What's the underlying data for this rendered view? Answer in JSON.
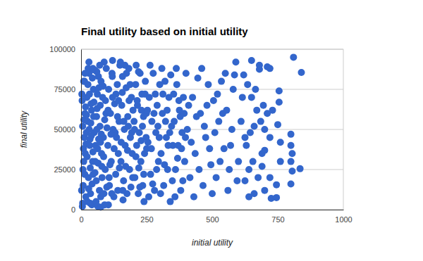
{
  "chart_data": {
    "type": "scatter",
    "title": "Final utility based on initial utility",
    "x_label": "initial utility",
    "y_label": "final utility",
    "color": "#3366cc",
    "marker": "circle",
    "grid": true,
    "xlim": [
      0,
      1000
    ],
    "ylim": [
      0,
      100000
    ],
    "xticks": [
      0,
      250,
      500,
      750,
      1000
    ],
    "yticks": [
      0,
      25000,
      50000,
      75000,
      100000
    ],
    "x": [
      5,
      8,
      10,
      12,
      15,
      3,
      6,
      9,
      14,
      18,
      4,
      7,
      11,
      16,
      20,
      2,
      13,
      17,
      19,
      6,
      22,
      25,
      28,
      30,
      33,
      36,
      40,
      44,
      47,
      50,
      24,
      27,
      31,
      35,
      38,
      42,
      45,
      48,
      26,
      34,
      23,
      29,
      32,
      37,
      41,
      43,
      46,
      49,
      39,
      21,
      52,
      55,
      58,
      61,
      65,
      68,
      72,
      75,
      78,
      82,
      85,
      88,
      92,
      95,
      98,
      54,
      60,
      66,
      73,
      80,
      57,
      63,
      70,
      77,
      84,
      90,
      96,
      62,
      74,
      86,
      53,
      59,
      67,
      71,
      79,
      87,
      93,
      99,
      64,
      76,
      102,
      105,
      108,
      112,
      115,
      118,
      122,
      125,
      128,
      132,
      135,
      138,
      142,
      145,
      148,
      104,
      110,
      120,
      130,
      140,
      103,
      107,
      114,
      119,
      126,
      133,
      139,
      146,
      117,
      143,
      152,
      155,
      158,
      162,
      165,
      168,
      172,
      175,
      178,
      182,
      185,
      188,
      192,
      195,
      198,
      160,
      170,
      180,
      190,
      157,
      153,
      163,
      173,
      183,
      193,
      167,
      177,
      187,
      197,
      159,
      202,
      205,
      208,
      212,
      215,
      218,
      222,
      225,
      228,
      232,
      235,
      238,
      242,
      245,
      248,
      210,
      220,
      230,
      240,
      250,
      204,
      214,
      224,
      234,
      244,
      209,
      219,
      229,
      239,
      249,
      255,
      260,
      265,
      270,
      275,
      280,
      285,
      290,
      295,
      300,
      258,
      268,
      278,
      288,
      298,
      263,
      273,
      283,
      293,
      253,
      305,
      310,
      315,
      320,
      325,
      330,
      335,
      340,
      345,
      350,
      308,
      318,
      328,
      338,
      348,
      312,
      322,
      332,
      342,
      303,
      355,
      360,
      365,
      370,
      375,
      380,
      385,
      390,
      395,
      400,
      358,
      368,
      378,
      388,
      398,
      363,
      373,
      383,
      393,
      353,
      405,
      415,
      425,
      435,
      445,
      455,
      465,
      475,
      485,
      495,
      410,
      420,
      430,
      440,
      450,
      460,
      470,
      480,
      490,
      500,
      510,
      520,
      530,
      540,
      550,
      560,
      570,
      580,
      590,
      600,
      515,
      525,
      535,
      545,
      555,
      565,
      575,
      585,
      595,
      505,
      610,
      620,
      630,
      640,
      650,
      660,
      670,
      680,
      690,
      700,
      615,
      625,
      635,
      645,
      655,
      665,
      675,
      685,
      695,
      640,
      710,
      720,
      725,
      745,
      755,
      755,
      750,
      760,
      745,
      720,
      800,
      800,
      805,
      800,
      805,
      800,
      810,
      840,
      835,
      760,
      10,
      30,
      60,
      90,
      120,
      45,
      75,
      150,
      15,
      35,
      680,
      700,
      720,
      660,
      730,
      690,
      650,
      625,
      700,
      710
    ],
    "values": [
      2000,
      15000,
      30000,
      45000,
      60000,
      72000,
      52000,
      38000,
      22000,
      8000,
      68000,
      25000,
      56000,
      35000,
      48000,
      12000,
      80000,
      64000,
      41000,
      4000,
      70000,
      55000,
      20000,
      85000,
      40000,
      10000,
      62000,
      30000,
      75000,
      48000,
      5000,
      88000,
      50000,
      26000,
      66000,
      16000,
      36000,
      58000,
      78000,
      44000,
      33000,
      13000,
      72000,
      54000,
      3000,
      82000,
      22000,
      67000,
      46000,
      59000,
      87000,
      40000,
      18000,
      63000,
      29000,
      76000,
      52000,
      8000,
      35000,
      70000,
      45000,
      92000,
      25000,
      60000,
      14000,
      30000,
      50000,
      83000,
      65000,
      20000,
      5000,
      38000,
      12000,
      47000,
      77000,
      56000,
      88000,
      72000,
      42000,
      33000,
      23000,
      58000,
      44000,
      90000,
      27000,
      10000,
      68000,
      51000,
      2000,
      80000,
      40000,
      75000,
      15000,
      60000,
      30000,
      85000,
      50000,
      8000,
      66000,
      22000,
      45000,
      78000,
      35000,
      55000,
      90000,
      3000,
      28000,
      70000,
      48000,
      12000,
      62000,
      20000,
      47000,
      83000,
      38000,
      72000,
      58000,
      26000,
      10000,
      68000,
      30000,
      65000,
      83000,
      18000,
      50000,
      40000,
      76000,
      10000,
      58000,
      88000,
      25000,
      45000,
      70000,
      35000,
      62000,
      6000,
      27000,
      52000,
      14000,
      73000,
      42000,
      55000,
      85000,
      68000,
      48000,
      90000,
      37000,
      78000,
      20000,
      12000,
      55000,
      20000,
      78000,
      40000,
      65000,
      10000,
      48000,
      85000,
      30000,
      72000,
      15000,
      58000,
      35000,
      80000,
      45000,
      90000,
      26000,
      62000,
      5000,
      38000,
      50000,
      68000,
      14000,
      52000,
      72000,
      33000,
      86000,
      43000,
      22000,
      60000,
      42000,
      70000,
      22000,
      55000,
      85000,
      12000,
      48000,
      65000,
      30000,
      78000,
      8000,
      38000,
      60000,
      25000,
      45000,
      90000,
      16000,
      72000,
      52000,
      62000,
      35000,
      60000,
      15000,
      80000,
      45000,
      25000,
      70000,
      5000,
      52000,
      40000,
      88000,
      28000,
      62000,
      48000,
      18000,
      72000,
      55000,
      40000,
      84000,
      10000,
      55000,
      25000,
      78000,
      40000,
      62000,
      12000,
      48000,
      70000,
      30000,
      85000,
      8000,
      32000,
      58000,
      18000,
      45000,
      88000,
      68000,
      38000,
      60000,
      72000,
      50000,
      20000,
      70000,
      35000,
      82000,
      60000,
      15000,
      45000,
      78000,
      28000,
      65000,
      42000,
      8000,
      58000,
      25000,
      88000,
      52000,
      65000,
      38000,
      10000,
      48000,
      72000,
      30000,
      60000,
      85000,
      12000,
      40000,
      75000,
      92000,
      30000,
      20000,
      55000,
      80000,
      38000,
      62000,
      25000,
      50000,
      84000,
      18000,
      68000,
      55000,
      84000,
      40000,
      25000,
      93000,
      10000,
      62000,
      87500,
      35000,
      50000,
      70000,
      18000,
      78000,
      48000,
      30000,
      75000,
      20000,
      55000,
      65000,
      8000,
      89000,
      88000,
      7000,
      15500,
      74000,
      67000,
      53000,
      42000,
      7500,
      20000,
      47000,
      40000,
      35000,
      30000,
      24000,
      16000,
      95000,
      85500,
      25500,
      30000,
      80000,
      92000,
      86000,
      3000,
      93000,
      88000,
      1500,
      92000,
      85000,
      4000,
      90000,
      37000,
      45000,
      52000,
      62000,
      27000,
      70000,
      45000,
      12000,
      60000
    ]
  }
}
